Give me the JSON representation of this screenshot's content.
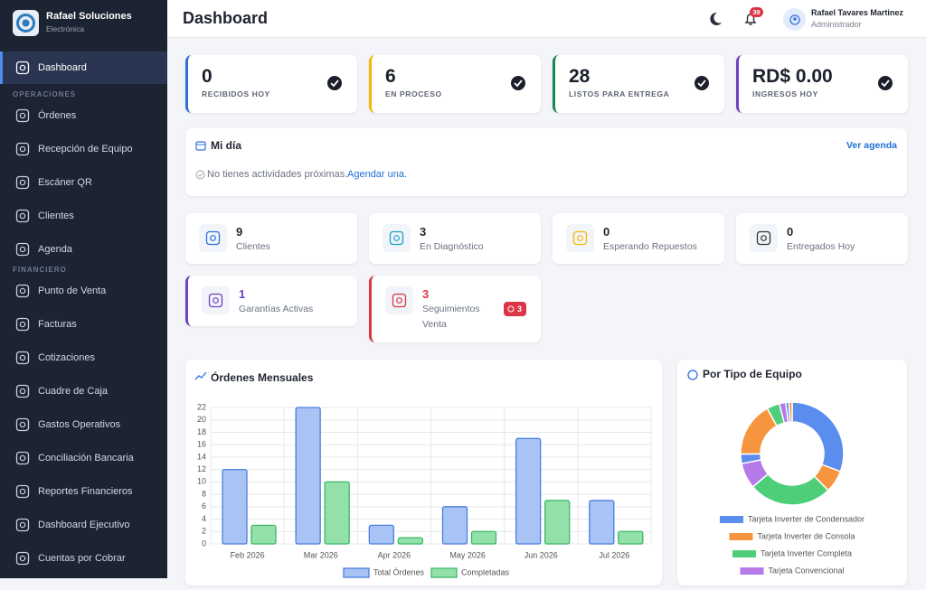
{
  "sidebar": {
    "brand": {
      "name": "Rafael Soluciones",
      "subtitle": "Electrónica"
    },
    "top_item": "Dashboard",
    "sections": [
      {
        "title": "OPERACIONES",
        "items": [
          "Órdenes",
          "Recepción de Equipo",
          "Escáner QR",
          "Clientes",
          "Agenda"
        ]
      },
      {
        "title": "FINANCIERO",
        "items": [
          "Punto de Venta",
          "Facturas",
          "Cotizaciones",
          "Cuadre de Caja",
          "Gastos Operativos",
          "Conciliación Bancaria",
          "Reportes Financieros",
          "Dashboard Ejecutivo",
          "Cuentas por Cobrar"
        ]
      }
    ]
  },
  "header": {
    "title": "Dashboard",
    "notifications": 39,
    "user": {
      "name": "Rafael Tavares Martinez",
      "role": "Administrador"
    }
  },
  "stats": [
    {
      "value": 0,
      "label": "RECIBIDOS HOY",
      "color": "#2f6fe0"
    },
    {
      "value": 6,
      "label": "EN PROCESO",
      "color": "#f5b800"
    },
    {
      "value": 28,
      "label": "LISTOS PARA ENTREGA",
      "color": "#198754"
    },
    {
      "value": "RD$ 0.00",
      "label": "INGRESOS HOY",
      "color": "#6f42c1"
    }
  ],
  "my_day": {
    "title": "Mi día",
    "link": "Ver agenda",
    "empty": "No tienes actividades próximas.",
    "action": "Agendar una."
  },
  "mini_cards": [
    {
      "value": 9,
      "label": "Clientes"
    },
    {
      "value": 3,
      "label": "En Diagnóstico"
    },
    {
      "value": 0,
      "label": "Esperando Repuestos"
    },
    {
      "value": 0,
      "label": "Entregados Hoy"
    },
    {
      "value": 1,
      "label": "Garantías Activas"
    },
    {
      "value": 3,
      "label": "Seguimientos Venta",
      "badge": 3
    }
  ],
  "chart_data": [
    {
      "type": "bar",
      "title": "Órdenes Mensuales",
      "categories": [
        "Feb 2026",
        "Mar 2026",
        "Apr 2026",
        "May 2026",
        "Jun 2026",
        "Jul 2026"
      ],
      "series": [
        {
          "name": "Total Órdenes",
          "color": "#4a7fe0",
          "fill": "#a9c3f5",
          "values": [
            12,
            22,
            3,
            6,
            17,
            7
          ]
        },
        {
          "name": "Completadas",
          "color": "#3cb964",
          "fill": "#93e0aa",
          "values": [
            3,
            10,
            1,
            2,
            7,
            2
          ]
        }
      ],
      "ylim": [
        0,
        22
      ],
      "yticks": [
        0,
        2,
        4,
        6,
        8,
        10,
        12,
        14,
        16,
        18,
        20,
        22
      ],
      "grid": true
    },
    {
      "type": "doughnut",
      "title": "Por Tipo de Equipo",
      "categories": [
        "Tarjeta Inverter de Condensador",
        "Tarjeta Inverter de Consola",
        "Tarjeta Inverter Completa",
        "Tarjeta Convencional",
        null,
        null,
        null,
        null,
        null,
        null
      ],
      "values": [
        30.5,
        7,
        26,
        8,
        3,
        17,
        4,
        2,
        1,
        1
      ],
      "colors": [
        "#5b8def",
        "#f7953f",
        "#4fce7a",
        "#b57ae8"
      ]
    }
  ]
}
